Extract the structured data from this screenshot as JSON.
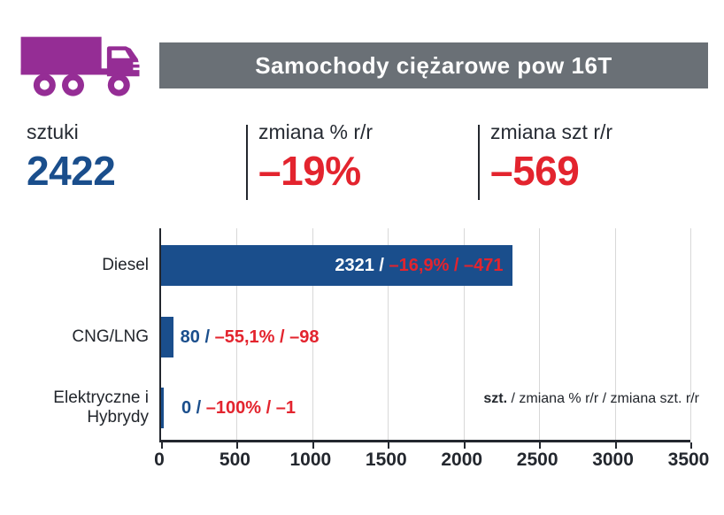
{
  "header": {
    "title": "Samochody ciężarowe pow 16T"
  },
  "icons": {
    "truck": "truck-icon"
  },
  "colors": {
    "accent_blue": "#1a4e8c",
    "accent_red": "#e3242e",
    "truck_purple": "#952d95",
    "header_gray": "#6a7076",
    "axis_dark": "#23272e",
    "gridline_gray": "#d8d8d8"
  },
  "stats": {
    "items": [
      {
        "label": "sztuki",
        "value": "2422"
      },
      {
        "label": "zmiana % r/r",
        "value": "–19%"
      },
      {
        "label": "zmiana szt r/r",
        "value": "–569"
      }
    ]
  },
  "chart_data": {
    "type": "bar",
    "orientation": "horizontal",
    "categories": [
      "Diesel",
      "CNG/LNG",
      "Elektryczne i Hybrydy"
    ],
    "values": [
      2321,
      80,
      0
    ],
    "change_pct_rr": [
      "–16,9%",
      "–55,1%",
      "–100%"
    ],
    "change_abs_rr": [
      -471,
      -98,
      -1
    ],
    "bar_labels": [
      {
        "value": "2321 /",
        "change": " –16,9% / –471"
      },
      {
        "value": "80 /",
        "change": " –55,1% / –98"
      },
      {
        "value": "0 /",
        "change": " –100% / –1"
      }
    ],
    "xticks": [
      "0",
      "500",
      "1000",
      "1500",
      "2000",
      "2500",
      "3000",
      "3500"
    ],
    "xlim": [
      0,
      3500
    ],
    "grid": "vertical",
    "legend": {
      "bold": "szt.",
      "rest": " / zmiana % r/r / zmiana szt. r/r"
    }
  }
}
